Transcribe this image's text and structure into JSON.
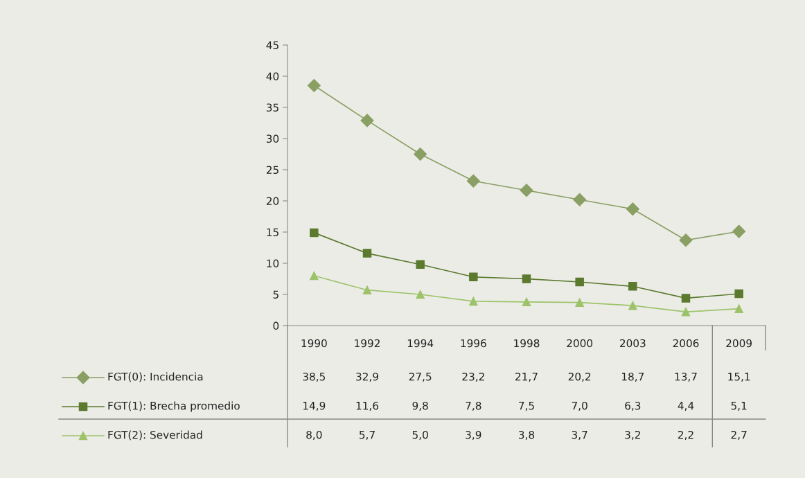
{
  "chart_data": {
    "type": "line",
    "categories": [
      "1990",
      "1992",
      "1994",
      "1996",
      "1998",
      "2000",
      "2003",
      "2006",
      "2009"
    ],
    "series": [
      {
        "name": "FGT(0): Incidencia",
        "color": "#8a9f64",
        "marker": "diamond",
        "values": [
          38.5,
          32.9,
          27.5,
          23.2,
          21.7,
          20.2,
          18.7,
          13.7,
          15.1
        ],
        "value_labels": [
          "38,5",
          "32,9",
          "27,5",
          "23,2",
          "21,7",
          "20,2",
          "18,7",
          "13,7",
          "15,1"
        ]
      },
      {
        "name": "FGT(1): Brecha promedio",
        "color": "#5b7a2e",
        "marker": "square",
        "values": [
          14.9,
          11.6,
          9.8,
          7.8,
          7.5,
          7.0,
          6.3,
          4.4,
          5.1
        ],
        "value_labels": [
          "14,9",
          "11,6",
          "9,8",
          "7,8",
          "7,5",
          "7,0",
          "6,3",
          "4,4",
          "5,1"
        ]
      },
      {
        "name": "FGT(2): Severidad",
        "color": "#9dc36a",
        "marker": "triangle",
        "values": [
          8.0,
          5.7,
          5.0,
          3.9,
          3.8,
          3.7,
          3.2,
          2.2,
          2.7
        ],
        "value_labels": [
          "8,0",
          "5,7",
          "5,0",
          "3,9",
          "3,8",
          "3,7",
          "3,2",
          "2,2",
          "2,7"
        ]
      }
    ],
    "ylim": [
      0,
      45
    ],
    "yticks": [
      0,
      5,
      10,
      15,
      20,
      25,
      30,
      35,
      40,
      45
    ],
    "grid": false,
    "legend": "bottom left",
    "line_style": "solid"
  }
}
